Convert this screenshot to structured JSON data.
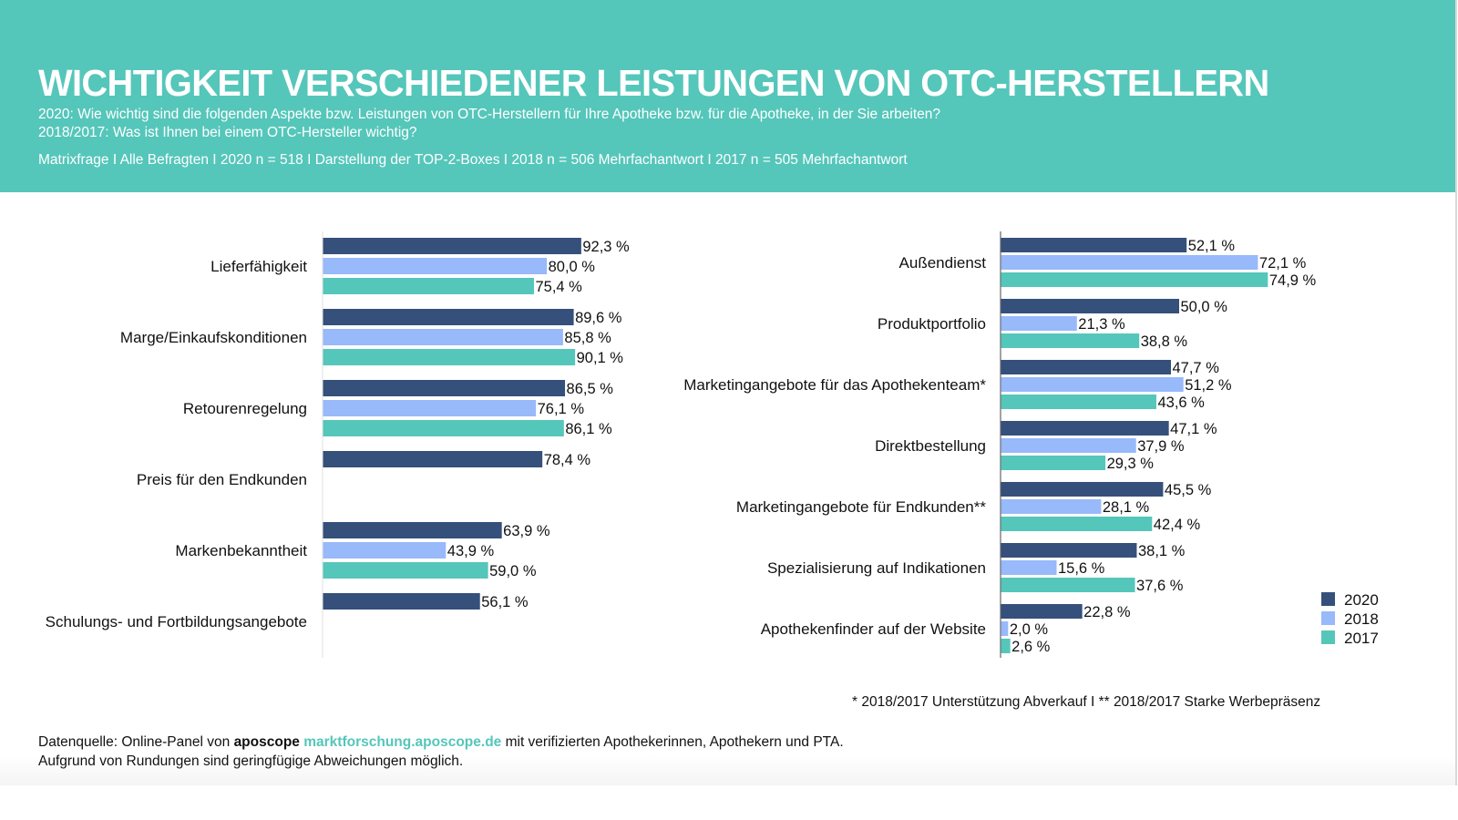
{
  "header": {
    "title": "WICHTIGKEIT VERSCHIEDENER LEISTUNGEN VON OTC-HERSTELLERN",
    "question_2020": "2020: Wie wichtig sind die folgenden Aspekte bzw. Leistungen von OTC-Herstellern für Ihre Apotheke bzw. für die Apotheke, in der Sie arbeiten?",
    "question_2018_2017": "2018/2017: Was ist Ihnen bei einem OTC-Hersteller wichtig?",
    "meta": "Matrixfrage I Alle Befragten I 2020 n = 518 I Darstellung der TOP-2-Boxes I 2018 n = 506 Mehrfachantwort I 2017 n = 505 Mehrfachantwort"
  },
  "colors": {
    "header_bg": "#55c6ba",
    "2020": "#35507a",
    "2018": "#98b9fa",
    "2017": "#55c6ba"
  },
  "chart_data": [
    {
      "type": "bar",
      "orientation": "horizontal",
      "title": "",
      "unit": "%",
      "xlim": [
        0,
        100
      ],
      "grid": false,
      "categories": [
        "Lieferfähigkeit",
        "Marge/Einkaufskonditionen",
        "Retourenregelung",
        "Preis für den Endkunden",
        "Markenbekanntheit",
        "Schulungs- und Fortbildungsangebote"
      ],
      "series": [
        {
          "name": "2020",
          "values": [
            92.3,
            89.6,
            86.5,
            78.4,
            63.9,
            56.1
          ],
          "labels": [
            "92,3 %",
            "89,6 %",
            "86,5 %",
            "78,4 %",
            "63,9 %",
            "56,1 %"
          ]
        },
        {
          "name": "2018",
          "values": [
            80.0,
            85.8,
            76.1,
            null,
            43.9,
            null
          ],
          "labels": [
            "80,0 %",
            "85,8 %",
            "76,1 %",
            null,
            "43,9 %",
            null
          ]
        },
        {
          "name": "2017",
          "values": [
            75.4,
            90.1,
            86.1,
            null,
            59.0,
            null
          ],
          "labels": [
            "75,4 %",
            "90,1 %",
            "86,1 %",
            null,
            "59,0 %",
            null
          ]
        }
      ]
    },
    {
      "type": "bar",
      "orientation": "horizontal",
      "title": "",
      "unit": "%",
      "xlim": [
        0,
        100
      ],
      "grid": false,
      "legend_position": "bottom-right",
      "categories": [
        "Außendienst",
        "Produktportfolio",
        "Marketingangebote für das Apothekenteam*",
        "Direktbestellung",
        "Marketingangebote für Endkunden**",
        "Spezialisierung auf Indikationen",
        "Apothekenfinder auf der Website"
      ],
      "series": [
        {
          "name": "2020",
          "values": [
            52.1,
            50.0,
            47.7,
            47.1,
            45.5,
            38.1,
            22.8
          ],
          "labels": [
            "52,1 %",
            "50,0 %",
            "47,7 %",
            "47,1 %",
            "45,5 %",
            "38,1 %",
            "22,8 %"
          ]
        },
        {
          "name": "2018",
          "values": [
            72.1,
            21.3,
            51.2,
            37.9,
            28.1,
            15.6,
            2.0
          ],
          "labels": [
            "72,1 %",
            "21,3 %",
            "51,2 %",
            "37,9 %",
            "28,1 %",
            "15,6 %",
            "2,0 %"
          ]
        },
        {
          "name": "2017",
          "values": [
            74.9,
            38.8,
            43.6,
            29.3,
            42.4,
            37.6,
            2.6
          ],
          "labels": [
            "74,9 %",
            "38,8 %",
            "43,6 %",
            "29,3 %",
            "42,4 %",
            "37,6 %",
            "2,6 %"
          ]
        }
      ]
    }
  ],
  "legend": [
    {
      "label": "2020"
    },
    {
      "label": "2018"
    },
    {
      "label": "2017"
    }
  ],
  "footnote": "* 2018/2017 Unterstützung Abverkauf I ** 2018/2017 Starke Werbepräsenz",
  "source": {
    "prefix": "Datenquelle: Online-Panel von ",
    "brand": "aposcope",
    "link": "marktforschung.aposcope.de",
    "suffix": " mit verifizierten Apothekerinnen, Apothekern und PTA.",
    "note": "Aufgrund von Rundungen sind geringfügige Abweichungen möglich."
  }
}
